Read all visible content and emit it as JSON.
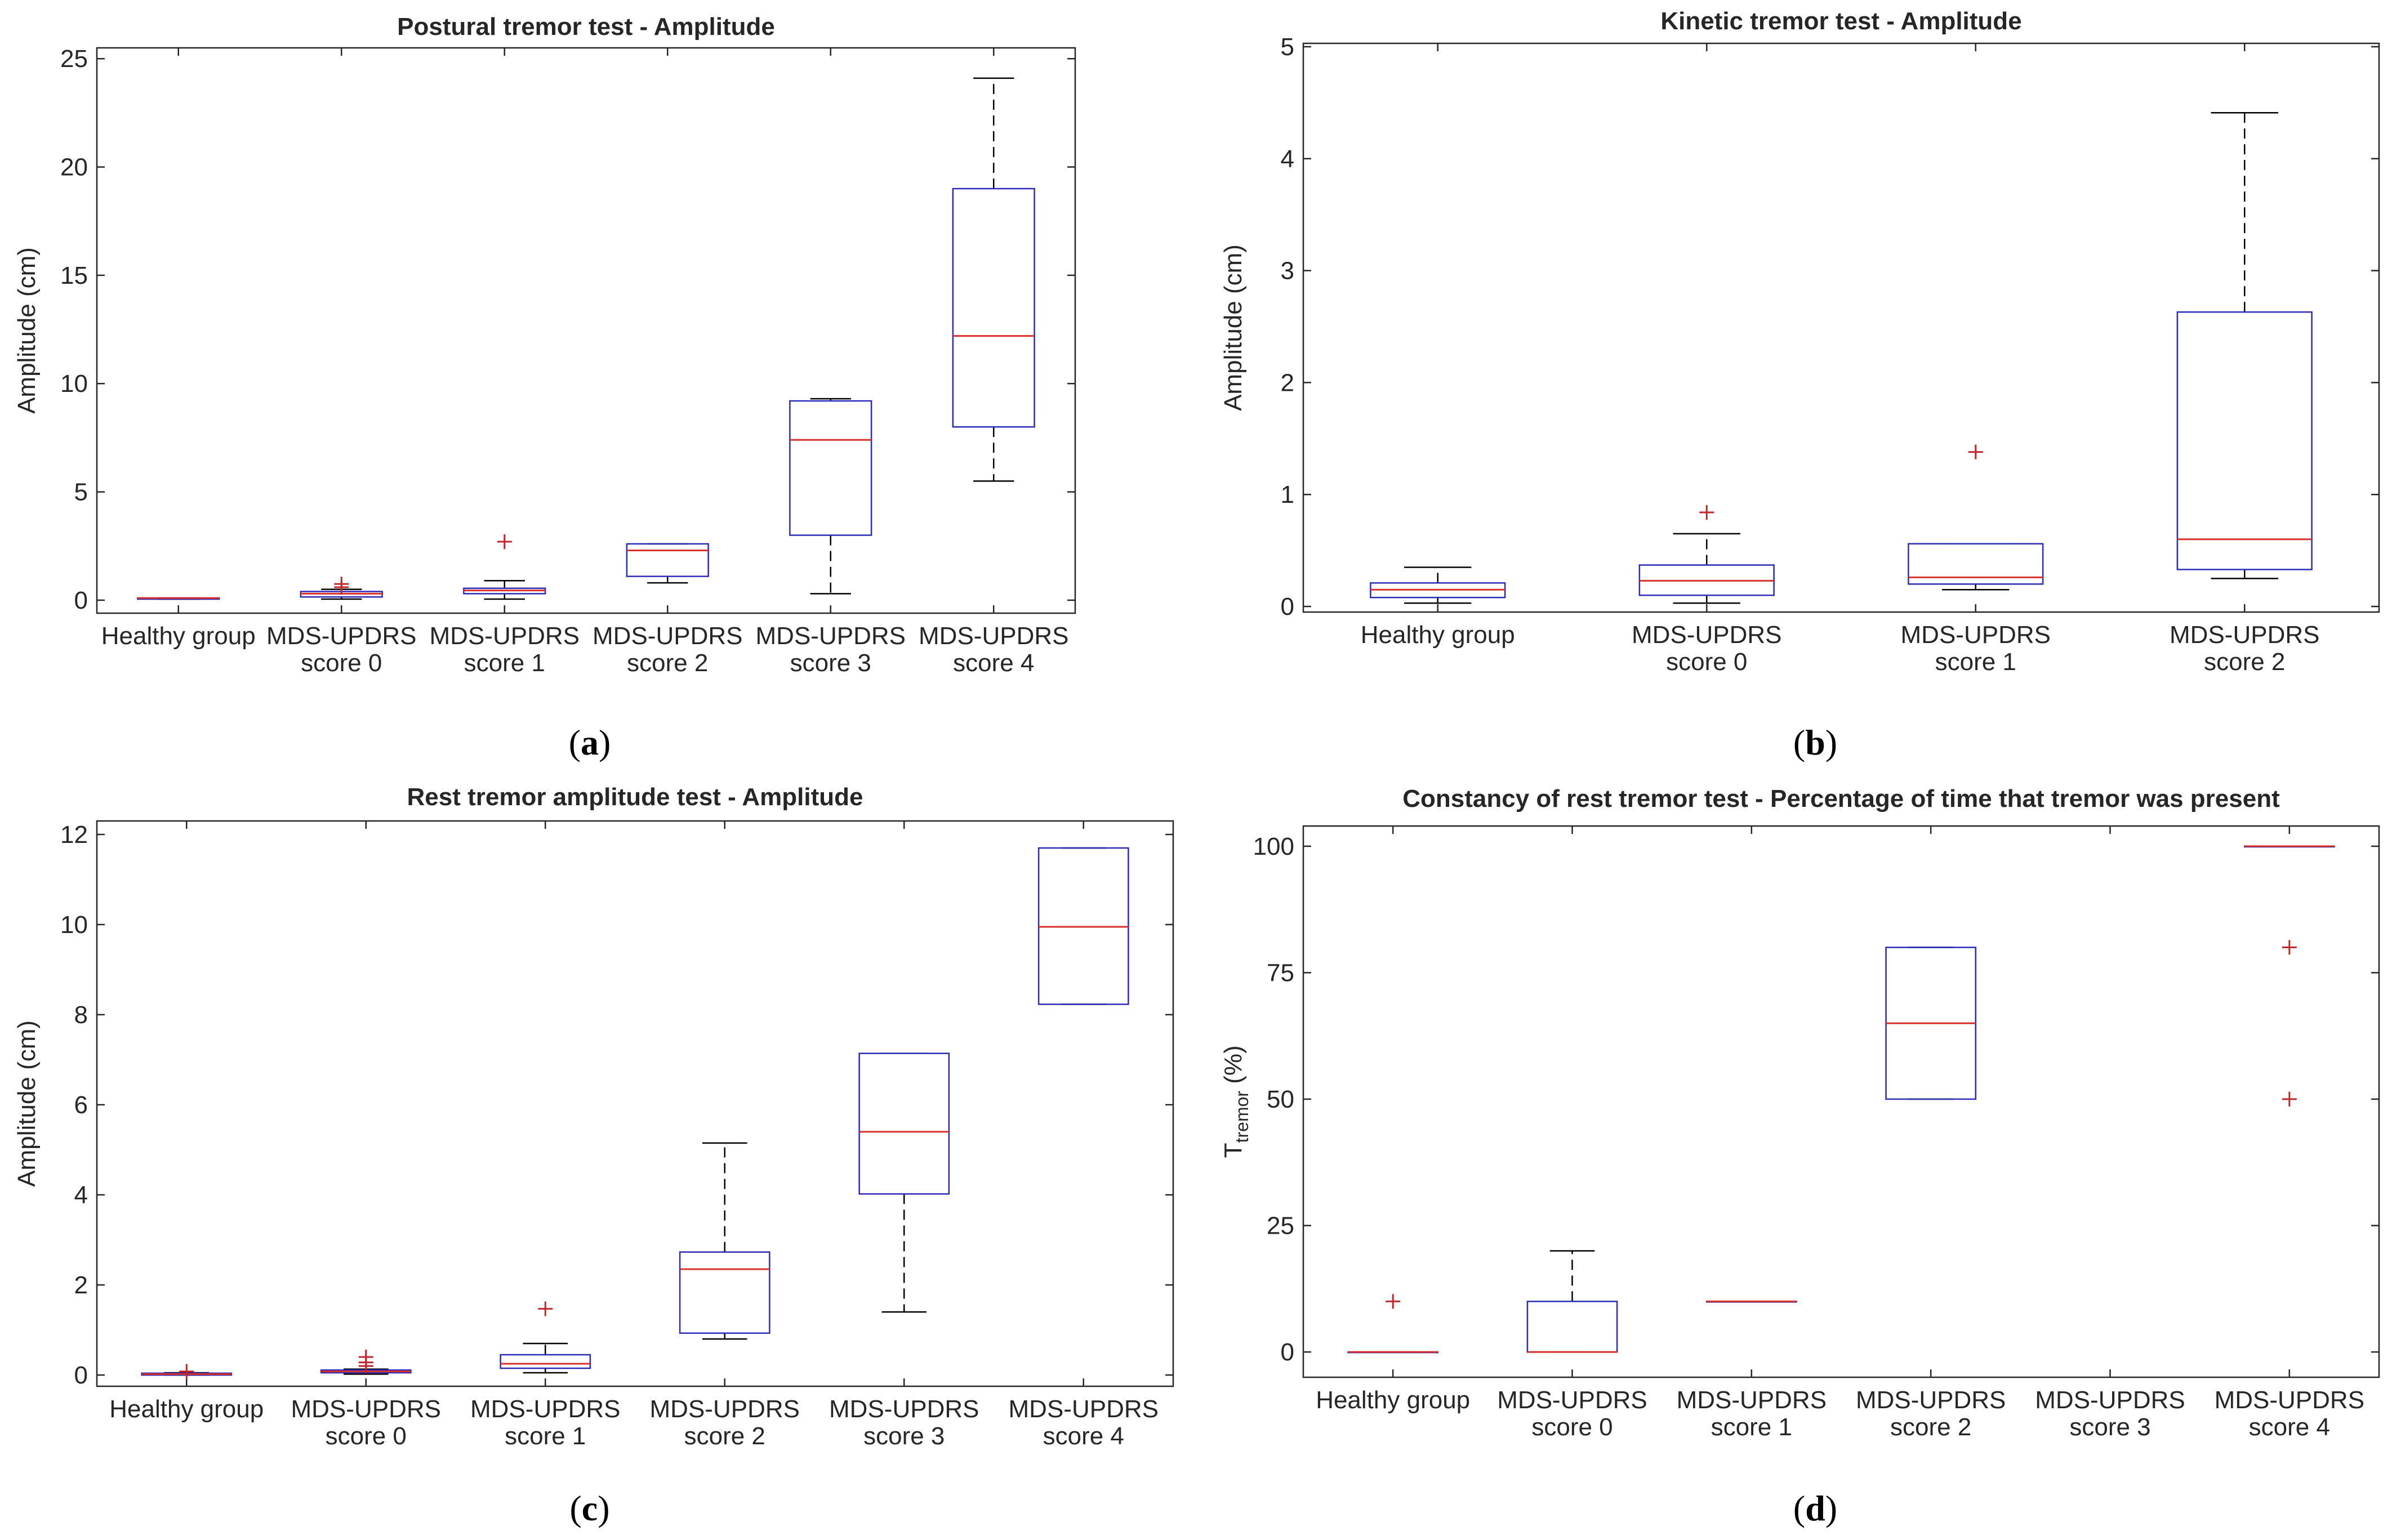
{
  "colors": {
    "axis": "#262626",
    "box": "#2b2bb8",
    "median": "#d9302b",
    "whisker": "#000000",
    "outlier": "#c0262a"
  },
  "chart_data": [
    {
      "type": "box",
      "panel_label": "a",
      "title": "Postural tremor test - Amplitude",
      "xlabel": "",
      "ylabel": "Amplitude (cm)",
      "ylim": [
        -0.6,
        25.5
      ],
      "yticks": [
        0,
        5,
        10,
        15,
        20,
        25
      ],
      "ytick_labels": [
        "0",
        "5",
        "10",
        "15",
        "20",
        "25"
      ],
      "categories": [
        [
          "Healthy group"
        ],
        [
          "MDS-UPDRS",
          "score 0"
        ],
        [
          "MDS-UPDRS",
          "score 1"
        ],
        [
          "MDS-UPDRS",
          "score 2"
        ],
        [
          "MDS-UPDRS",
          "score 3"
        ],
        [
          "MDS-UPDRS",
          "score 4"
        ]
      ],
      "boxes": [
        {
          "min": 0.05,
          "q1": 0.05,
          "median": 0.1,
          "q3": 0.1,
          "max": 0.1,
          "outliers": []
        },
        {
          "min": 0.05,
          "q1": 0.15,
          "median": 0.3,
          "q3": 0.4,
          "max": 0.5,
          "outliers": [
            0.6,
            0.75
          ]
        },
        {
          "min": 0.05,
          "q1": 0.3,
          "median": 0.45,
          "q3": 0.55,
          "max": 0.9,
          "outliers": [
            2.7
          ]
        },
        {
          "min": 0.8,
          "q1": 1.1,
          "median": 2.3,
          "q3": 2.6,
          "max": 2.6,
          "outliers": []
        },
        {
          "min": 0.3,
          "q1": 3.0,
          "median": 7.4,
          "q3": 9.2,
          "max": 9.3,
          "outliers": []
        },
        {
          "min": 5.5,
          "q1": 8.0,
          "median": 12.2,
          "q3": 19.0,
          "max": 24.1,
          "outliers": []
        }
      ]
    },
    {
      "type": "box",
      "panel_label": "b",
      "title": "Kinetic tremor test - Amplitude",
      "xlabel": "",
      "ylabel": "Amplitude (cm)",
      "ylim": [
        -0.05,
        5.03
      ],
      "yticks": [
        0,
        1,
        2,
        3,
        4,
        5
      ],
      "ytick_labels": [
        "0",
        "1",
        "2",
        "3",
        "4",
        "5"
      ],
      "categories": [
        [
          "Healthy group"
        ],
        [
          "MDS-UPDRS",
          "score 0"
        ],
        [
          "MDS-UPDRS",
          "score 1"
        ],
        [
          "MDS-UPDRS",
          "score 2"
        ]
      ],
      "boxes": [
        {
          "min": 0.03,
          "q1": 0.08,
          "median": 0.15,
          "q3": 0.21,
          "max": 0.35,
          "outliers": []
        },
        {
          "min": 0.03,
          "q1": 0.1,
          "median": 0.23,
          "q3": 0.37,
          "max": 0.65,
          "outliers": [
            0.84
          ]
        },
        {
          "min": 0.15,
          "q1": 0.2,
          "median": 0.26,
          "q3": 0.56,
          "max": 0.56,
          "outliers": [
            1.38
          ]
        },
        {
          "min": 0.25,
          "q1": 0.33,
          "median": 0.6,
          "q3": 2.63,
          "max": 4.41,
          "outliers": []
        }
      ]
    },
    {
      "type": "box",
      "panel_label": "c",
      "title": "Rest tremor amplitude test - Amplitude",
      "xlabel": "",
      "ylabel": "Amplitude (cm)",
      "ylim": [
        -0.25,
        12.3
      ],
      "yticks": [
        0,
        2,
        4,
        6,
        8,
        10,
        12
      ],
      "ytick_labels": [
        "0",
        "2",
        "4",
        "6",
        "8",
        "10",
        "12"
      ],
      "categories": [
        [
          "Healthy group"
        ],
        [
          "MDS-UPDRS",
          "score 0"
        ],
        [
          "MDS-UPDRS",
          "score 1"
        ],
        [
          "MDS-UPDRS",
          "score 2"
        ],
        [
          "MDS-UPDRS",
          "score 3"
        ],
        [
          "MDS-UPDRS",
          "score 4"
        ]
      ],
      "boxes": [
        {
          "min": 0.0,
          "q1": 0.0,
          "median": 0.02,
          "q3": 0.04,
          "max": 0.05,
          "outliers": [
            0.08
          ]
        },
        {
          "min": 0.02,
          "q1": 0.05,
          "median": 0.08,
          "q3": 0.11,
          "max": 0.13,
          "outliers": [
            0.2,
            0.28,
            0.4
          ]
        },
        {
          "min": 0.05,
          "q1": 0.15,
          "median": 0.25,
          "q3": 0.45,
          "max": 0.7,
          "outliers": [
            1.47
          ]
        },
        {
          "min": 0.8,
          "q1": 0.93,
          "median": 2.35,
          "q3": 2.73,
          "max": 5.15,
          "outliers": []
        },
        {
          "min": 1.4,
          "q1": 4.02,
          "median": 5.4,
          "q3": 7.14,
          "max": 7.14,
          "outliers": []
        },
        {
          "min": 8.23,
          "q1": 8.23,
          "median": 9.95,
          "q3": 11.7,
          "max": 11.7,
          "outliers": []
        }
      ]
    },
    {
      "type": "box",
      "panel_label": "d",
      "title": "Constancy of rest tremor test - Percentage of time that tremor was present",
      "xlabel": "",
      "ylabel_main": "T",
      "ylabel_sub": "tremor",
      "ylabel_tail": " (%)",
      "ylim": [
        -5,
        104
      ],
      "yticks": [
        0,
        25,
        50,
        75,
        100
      ],
      "ytick_labels": [
        "0",
        "25",
        "50",
        "75",
        "100"
      ],
      "categories": [
        [
          "Healthy group"
        ],
        [
          "MDS-UPDRS",
          "score 0"
        ],
        [
          "MDS-UPDRS",
          "score 1"
        ],
        [
          "MDS-UPDRS",
          "score 2"
        ],
        [
          "MDS-UPDRS",
          "score 3"
        ],
        [
          "MDS-UPDRS",
          "score 4"
        ]
      ],
      "boxes": [
        {
          "min": 0,
          "q1": 0,
          "median": 0,
          "q3": 0,
          "max": 0,
          "outliers": [
            10
          ]
        },
        {
          "min": 0,
          "q1": 0,
          "median": 0,
          "q3": 10,
          "max": 20,
          "outliers": []
        },
        {
          "min": 10,
          "q1": 10,
          "median": 10,
          "q3": 10,
          "max": 10,
          "outliers": []
        },
        {
          "min": 50,
          "q1": 50,
          "median": 65,
          "q3": 80,
          "max": 80,
          "outliers": []
        },
        null,
        {
          "min": 100,
          "q1": 100,
          "median": 100,
          "q3": 100,
          "max": 100,
          "outliers": [
            80,
            50
          ]
        }
      ]
    }
  ]
}
